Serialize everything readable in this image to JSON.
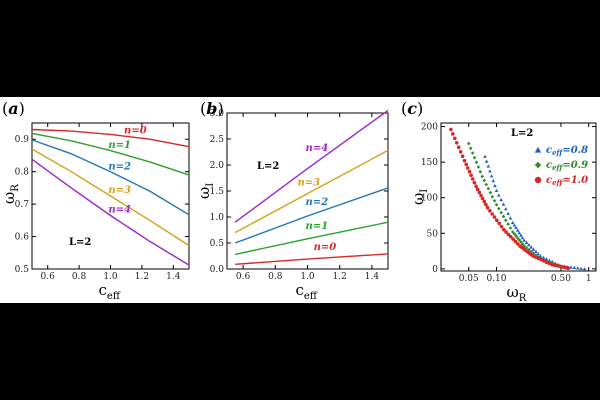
{
  "chart_data": [
    {
      "type": "line",
      "panel_label": "(a)",
      "xlabel": "c",
      "xlabel_sub": "eff",
      "ylabel": "ω",
      "ylabel_sub": "R",
      "xlim": [
        0.5,
        1.5
      ],
      "ylim": [
        0.5,
        0.95
      ],
      "xticks": [
        "0.6",
        "0.8",
        "1.0",
        "1.2",
        "1.4"
      ],
      "yticks": [
        "0.5",
        "0.6",
        "0.7",
        "0.8",
        "0.9"
      ],
      "annotation": "L=2",
      "series": [
        {
          "name": "n=0",
          "color": "#d62728",
          "x": [
            0.5,
            0.75,
            1.0,
            1.25,
            1.5
          ],
          "y": [
            0.93,
            0.925,
            0.915,
            0.9,
            0.877
          ]
        },
        {
          "name": "n=1",
          "color": "#2ca02c",
          "x": [
            0.5,
            0.75,
            1.0,
            1.25,
            1.5
          ],
          "y": [
            0.918,
            0.895,
            0.865,
            0.83,
            0.79
          ]
        },
        {
          "name": "n=2",
          "color": "#1f77b4",
          "x": [
            0.5,
            0.75,
            1.0,
            1.25,
            1.5
          ],
          "y": [
            0.898,
            0.855,
            0.8,
            0.74,
            0.667
          ]
        },
        {
          "name": "n=3",
          "color": "#d4a017",
          "x": [
            0.5,
            0.75,
            1.0,
            1.25,
            1.5
          ],
          "y": [
            0.87,
            0.8,
            0.725,
            0.65,
            0.572
          ]
        },
        {
          "name": "n=4",
          "color": "#9b27c9",
          "x": [
            0.5,
            0.75,
            1.0,
            1.25,
            1.5
          ],
          "y": [
            0.838,
            0.75,
            0.665,
            0.585,
            0.512
          ]
        }
      ]
    },
    {
      "type": "line",
      "panel_label": "(b)",
      "xlabel": "c",
      "xlabel_sub": "eff",
      "ylabel": "ω",
      "ylabel_sub": "I",
      "xlim": [
        0.5,
        1.5
      ],
      "ylim": [
        0,
        3.0
      ],
      "xticks": [
        "0.6",
        "0.8",
        "1.0",
        "1.2",
        "1.4"
      ],
      "yticks": [
        "0.0",
        "0.5",
        "1.0",
        "1.5",
        "2.0",
        "2.5",
        "3.0"
      ],
      "annotation": "L=2",
      "series": [
        {
          "name": "n=4",
          "color": "#9b27c9",
          "x": [
            0.55,
            1.0,
            1.5
          ],
          "y": [
            0.9,
            1.93,
            3.05
          ]
        },
        {
          "name": "n=3",
          "color": "#d4a017",
          "x": [
            0.55,
            1.0,
            1.5
          ],
          "y": [
            0.7,
            1.45,
            2.28
          ]
        },
        {
          "name": "n=2",
          "color": "#1f77b4",
          "x": [
            0.55,
            1.0,
            1.5
          ],
          "y": [
            0.5,
            1.02,
            1.56
          ]
        },
        {
          "name": "n=1",
          "color": "#2ca02c",
          "x": [
            0.55,
            1.0,
            1.5
          ],
          "y": [
            0.28,
            0.58,
            0.9
          ]
        },
        {
          "name": "n=0",
          "color": "#d62728",
          "x": [
            0.55,
            1.0,
            1.5
          ],
          "y": [
            0.09,
            0.19,
            0.29
          ]
        }
      ]
    },
    {
      "type": "scatter",
      "panel_label": "(c)",
      "xlabel": "ω",
      "xlabel_sub": "R",
      "ylabel": "ω",
      "ylabel_sub": "I",
      "xscale": "log",
      "xlim": [
        0.025,
        1.2
      ],
      "ylim": [
        -3,
        205
      ],
      "xticks": [
        "0.05",
        "0.10",
        "0.50",
        "1"
      ],
      "xtick_values": [
        0.05,
        0.1,
        0.5,
        1
      ],
      "yticks": [
        "0",
        "50",
        "100",
        "150",
        "200"
      ],
      "annotation": "L=2",
      "legend_position": "top-right",
      "series": [
        {
          "name": "c",
          "name_sub": "eff",
          "name_suffix": "=0.8",
          "marker": "triangle",
          "color": "#1f5fbf",
          "x": [
            0.075,
            0.1,
            0.15,
            0.2,
            0.3,
            0.5,
            0.9
          ],
          "y": [
            158,
            110,
            65,
            40,
            18,
            4,
            0
          ]
        },
        {
          "name": "c",
          "name_sub": "eff",
          "name_suffix": "=0.9",
          "marker": "diamond",
          "color": "#2e8b2e",
          "x": [
            0.05,
            0.07,
            0.1,
            0.15,
            0.2,
            0.3,
            0.5,
            0.6
          ],
          "y": [
            176,
            130,
            90,
            52,
            32,
            14,
            3,
            1
          ]
        },
        {
          "name": "c",
          "name_sub": "eff",
          "name_suffix": "=1.0",
          "marker": "circle",
          "color": "#d62728",
          "x": [
            0.032,
            0.045,
            0.06,
            0.08,
            0.12,
            0.18,
            0.25,
            0.4,
            0.6
          ],
          "y": [
            196,
            152,
            116,
            86,
            55,
            32,
            18,
            6,
            1
          ]
        }
      ]
    }
  ]
}
